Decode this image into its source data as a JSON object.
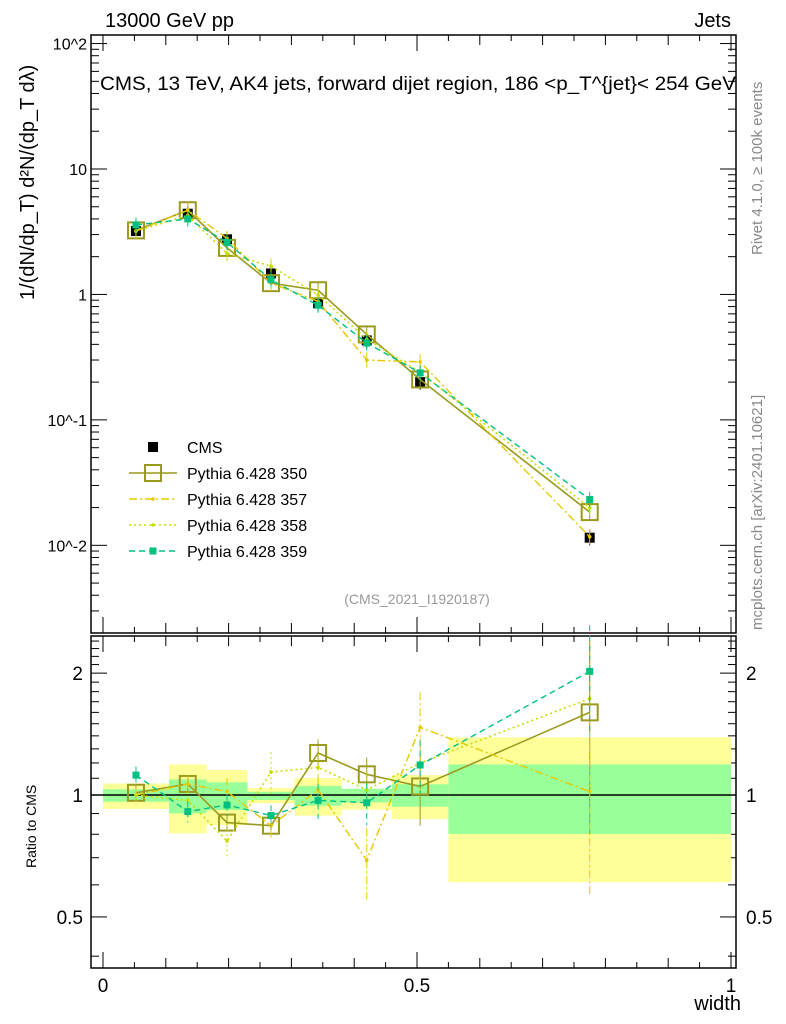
{
  "header": {
    "left": "13000 GeV pp",
    "right": "Jets"
  },
  "side_labels": {
    "rivet": "Rivet 4.1.0, ≥ 100k events",
    "mcplots": "mcplots.cern.ch [arXiv:2401.10621]"
  },
  "analysis_id": "(CMS_2021_I1920187)",
  "colors": {
    "cms": "#000000",
    "p350": "#9a9a1e",
    "p357": "#e6c800",
    "p358": "#c8dc00",
    "p359": "#00c080",
    "band_stat": "#99ff99",
    "band_tot": "#ffff99"
  },
  "chart_data": [
    {
      "type": "scatter",
      "title": "CMS, 13 TeV, AK4 jets, forward dijet region, 186 <p_T^{jet}< 254 GeV",
      "ylabel": "1/(dN/dp_T) d²N/(dp_T dλ)",
      "yscale": "log",
      "ylim": [
        0.002,
        117
      ],
      "xlim": [
        -0.02,
        1.01
      ],
      "ytick_labels": [
        "10^-2",
        "10^-1",
        "1",
        "10",
        "10^2"
      ],
      "ytick_values": [
        0.01,
        0.1,
        1,
        10,
        100
      ],
      "bin_edges": [
        0,
        0.105,
        0.165,
        0.23,
        0.305,
        0.38,
        0.46,
        0.55,
        1.0
      ],
      "x": [
        0.0525,
        0.135,
        0.1975,
        0.2675,
        0.3425,
        0.42,
        0.505,
        0.775
      ],
      "legend_placement": "bottom-left",
      "series": [
        {
          "name": "CMS",
          "key": "cms",
          "values": [
            3.2,
            4.4,
            2.75,
            1.47,
            0.85,
            0.43,
            0.2,
            0.0115
          ]
        },
        {
          "name": "Pythia 6.428 350",
          "key": "p350",
          "values": [
            3.24,
            4.69,
            2.35,
            1.23,
            1.08,
            0.48,
            0.21,
            0.0184
          ]
        },
        {
          "name": "Pythia 6.428 357",
          "key": "p357",
          "values": [
            3.2,
            4.69,
            2.8,
            1.23,
            0.88,
            0.3,
            0.29,
            0.0117
          ]
        },
        {
          "name": "Pythia 6.428 358",
          "key": "p358",
          "values": [
            3.2,
            4.27,
            2.12,
            1.68,
            0.99,
            0.44,
            0.24,
            0.0199
          ]
        },
        {
          "name": "Pythia 6.428 359",
          "key": "p359",
          "values": [
            3.58,
            4.0,
            2.6,
            1.31,
            0.82,
            0.41,
            0.237,
            0.0232
          ]
        }
      ]
    },
    {
      "type": "scatter",
      "ylabel": "Ratio to CMS",
      "xlabel": "width",
      "yscale": "log",
      "ylim": [
        0.374,
        2.47
      ],
      "xlim": [
        -0.02,
        1.01
      ],
      "ytick_labels": [
        "0.5",
        "1",
        "2"
      ],
      "ytick_values": [
        0.5,
        1,
        2
      ],
      "xtick_labels": [
        "0",
        "0.5",
        "1"
      ],
      "xtick_values": [
        0,
        0.5,
        1
      ],
      "band_stat": {
        "lo": [
          0.963,
          0.901,
          0.918,
          0.972,
          0.941,
          0.959,
          0.936,
          0.801
        ],
        "hi": [
          1.033,
          1.093,
          1.075,
          1.019,
          1.052,
          1.036,
          1.063,
          1.19
        ]
      },
      "band_total": {
        "lo": [
          0.924,
          0.804,
          0.843,
          0.954,
          0.889,
          0.92,
          0.872,
          0.609
        ],
        "hi": [
          1.068,
          1.19,
          1.153,
          1.04,
          1.101,
          1.036,
          1.12,
          1.388
        ]
      },
      "series": [
        {
          "name": "Pythia 6.428 350",
          "key": "p350",
          "values": [
            1.013,
            1.065,
            0.855,
            0.84,
            1.27,
            1.125,
            1.05,
            1.6
          ],
          "rel_err": [
            0.04,
            0.05,
            0.05,
            0.06,
            0.08,
            0.1,
            0.2,
            0.5
          ]
        },
        {
          "name": "Pythia 6.428 357",
          "key": "p357",
          "values": [
            1.0,
            1.065,
            1.02,
            0.84,
            1.03,
            0.69,
            1.47,
            1.02
          ],
          "rel_err": [
            0.04,
            0.05,
            0.08,
            0.07,
            0.08,
            0.2,
            0.22,
            0.45
          ]
        },
        {
          "name": "Pythia 6.428 358",
          "key": "p358",
          "values": [
            1.0,
            0.97,
            0.77,
            1.14,
            1.17,
            1.03,
            1.2,
            1.73
          ],
          "rel_err": [
            0.04,
            0.05,
            0.1,
            0.12,
            0.08,
            0.1,
            0.15,
            0.4
          ]
        },
        {
          "name": "Pythia 6.428 359",
          "key": "p359",
          "values": [
            1.12,
            0.91,
            0.945,
            0.89,
            0.97,
            0.957,
            1.186,
            2.02
          ],
          "rel_err": [
            0.05,
            0.06,
            0.06,
            0.06,
            0.1,
            0.12,
            0.15,
            0.3
          ]
        }
      ]
    }
  ]
}
